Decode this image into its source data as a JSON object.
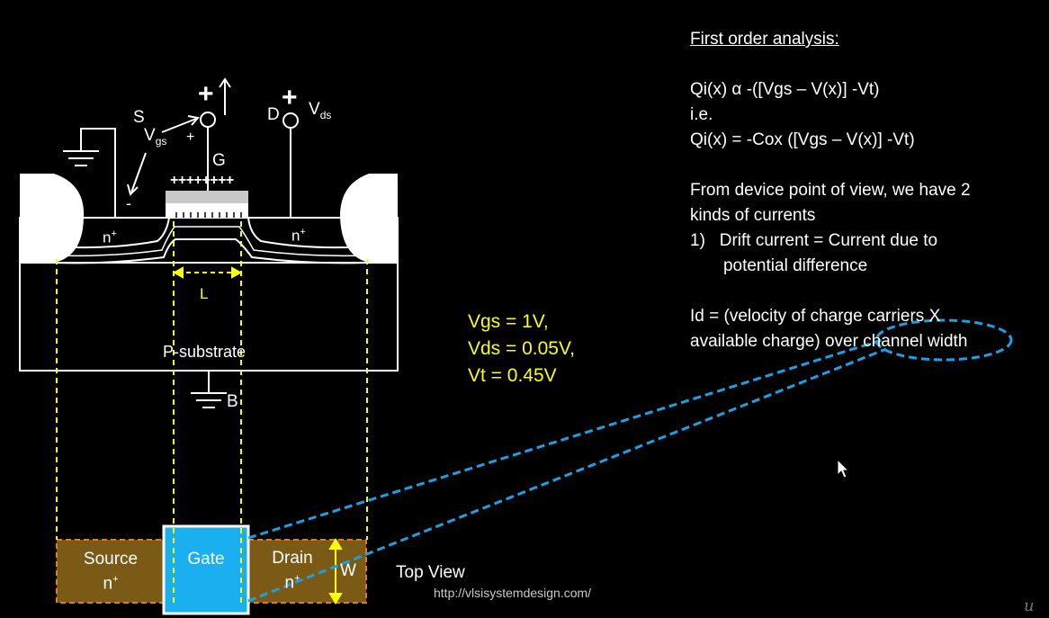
{
  "notes": {
    "heading": "First order analysis:",
    "lines": [
      "Qi(x) α -([Vgs – V(x)] -Vt)",
      "i.e.",
      "Qi(x) = -Cox ([Vgs – V(x)] -Vt)",
      "",
      "From device point of view, we have 2",
      "kinds of currents",
      "1)   Drift current = Current due to",
      "       potential difference",
      "",
      "Id = (velocity of charge carriers X",
      "available charge) over channel width"
    ]
  },
  "params": [
    "Vgs = 1V,",
    "Vds = 0.05V,",
    "Vt = 0.45V"
  ],
  "labels": {
    "source_terminal": "S",
    "gate_terminal": "G",
    "drain_terminal": "D",
    "body_terminal": "B",
    "vgs": "V",
    "vgs_sub": "gs",
    "vds": "V",
    "vds_sub": "ds",
    "plus_sign": "+",
    "minus_sign": "-",
    "gate_charges": "++++++++",
    "n_plus_left": "n",
    "n_plus_right": "n",
    "plus_sup": "+",
    "length": "L",
    "substrate": "P-substrate",
    "width": "W",
    "source_box": "Source",
    "source_box_sub": "n",
    "gate_box": "Gate",
    "drain_box": "Drain",
    "drain_box_sub": "n",
    "top_view": "Top View"
  },
  "url": "http://vlsisystemdesign.com/",
  "watermark": "u",
  "colors": {
    "background": "#000000",
    "text": "#ffffff",
    "highlight": "#ffff00",
    "callout": "#1ba1e2",
    "gate_fill": "#1ab0ef",
    "diffusion_fill": "#7a5a14",
    "diffusion_border": "#e07b2a"
  }
}
